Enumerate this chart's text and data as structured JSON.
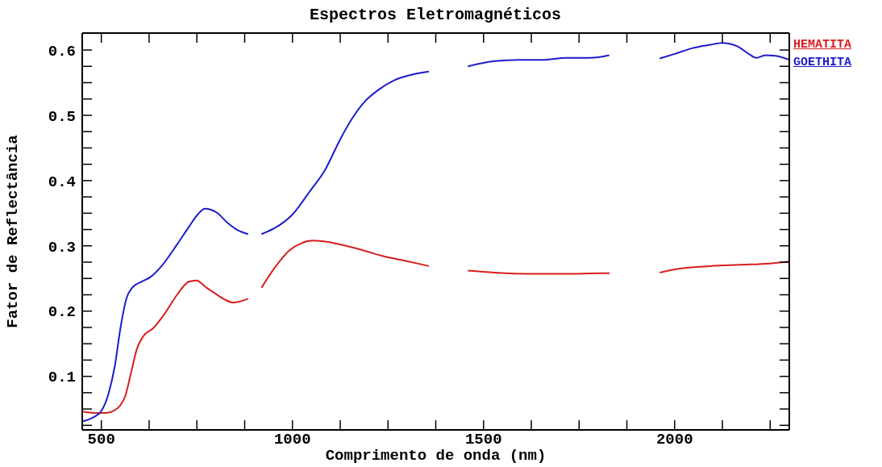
{
  "chart_data": {
    "type": "line",
    "title": "Espectros Eletromagnéticos",
    "xlabel": "Comprimento de onda (nm)",
    "ylabel": "Fator de Reflectância",
    "xlim": [
      450,
      2300
    ],
    "ylim": [
      0.018,
      0.626
    ],
    "xticks": [
      500,
      {
        "value": 625,
        "label": null
      },
      {
        "value": 750,
        "label": null
      },
      {
        "value": 875,
        "label": null
      },
      1000,
      {
        "value": 1125,
        "label": null
      },
      {
        "value": 1250,
        "label": null
      },
      {
        "value": 1375,
        "label": null
      },
      1500,
      {
        "value": 1625,
        "label": null
      },
      {
        "value": 1750,
        "label": null
      },
      {
        "value": 1875,
        "label": null
      },
      2000,
      {
        "value": 2125,
        "label": null
      },
      {
        "value": 2250,
        "label": null
      }
    ],
    "yticks": [
      {
        "value": 0.025,
        "label": null
      },
      {
        "value": 0.05,
        "label": null
      },
      {
        "value": 0.075,
        "label": null
      },
      0.1,
      {
        "value": 0.125,
        "label": null
      },
      {
        "value": 0.15,
        "label": null
      },
      {
        "value": 0.175,
        "label": null
      },
      0.2,
      {
        "value": 0.225,
        "label": null
      },
      {
        "value": 0.25,
        "label": null
      },
      {
        "value": 0.275,
        "label": null
      },
      0.3,
      {
        "value": 0.325,
        "label": null
      },
      {
        "value": 0.35,
        "label": null
      },
      {
        "value": 0.375,
        "label": null
      },
      0.4,
      {
        "value": 0.425,
        "label": null
      },
      {
        "value": 0.45,
        "label": null
      },
      {
        "value": 0.475,
        "label": null
      },
      0.5,
      {
        "value": 0.525,
        "label": null
      },
      {
        "value": 0.55,
        "label": null
      },
      {
        "value": 0.575,
        "label": null
      },
      0.6
    ],
    "grid": false,
    "legend": "top right",
    "marker": "none",
    "line_style": "solid",
    "series": [
      {
        "name": "HEMATITA",
        "color": "#d81e1e",
        "x": [
          450,
          481,
          512,
          535,
          550,
          562,
          578,
          593,
          609,
          636,
          667,
          698,
          729,
          748,
          775,
          798,
          822,
          845,
          864,
          884,
          900,
          919,
          953,
          992,
          1023,
          1054,
          1093,
          1140,
          1186,
          1233,
          1296,
          1357,
          1400,
          1459,
          1529,
          1630,
          1708,
          1811,
          1830,
          1900,
          1961,
          2000,
          2093,
          2171,
          2249,
          2300
        ],
        "values": [
          0.046,
          0.044,
          0.044,
          0.048,
          0.056,
          0.069,
          0.106,
          0.142,
          0.161,
          0.174,
          0.197,
          0.225,
          0.245,
          0.247,
          0.236,
          0.227,
          0.218,
          0.213,
          0.215,
          0.219,
          null,
          0.236,
          0.266,
          0.293,
          0.304,
          0.308,
          0.306,
          0.3,
          0.293,
          0.285,
          0.277,
          0.269,
          null,
          0.262,
          0.259,
          0.257,
          0.257,
          0.258,
          0.258,
          null,
          0.259,
          0.264,
          0.269,
          0.271,
          0.273,
          0.276
        ]
      },
      {
        "name": "GOETHITA",
        "color": "#1c1ccc",
        "x": [
          450,
          481,
          500,
          519,
          535,
          550,
          566,
          581,
          605,
          628,
          659,
          698,
          729,
          752,
          771,
          802,
          829,
          857,
          884,
          900,
          919,
          953,
          1000,
          1046,
          1085,
          1124,
          1155,
          1186,
          1225,
          1264,
          1311,
          1357,
          1400,
          1459,
          1529,
          1591,
          1654,
          1716,
          1778,
          1829,
          1900,
          1961,
          2000,
          2047,
          2093,
          2124,
          2163,
          2194,
          2214,
          2237,
          2264,
          2300
        ],
        "values": [
          0.031,
          0.038,
          0.047,
          0.074,
          0.115,
          0.174,
          0.22,
          0.236,
          0.245,
          0.252,
          0.27,
          0.302,
          0.329,
          0.348,
          0.357,
          0.351,
          0.336,
          0.324,
          0.318,
          null,
          0.318,
          0.327,
          0.348,
          0.384,
          0.416,
          0.462,
          0.494,
          0.519,
          0.539,
          0.553,
          0.562,
          0.567,
          null,
          0.575,
          0.583,
          0.585,
          0.585,
          0.588,
          0.588,
          0.592,
          null,
          0.587,
          0.594,
          0.603,
          0.608,
          0.611,
          0.606,
          0.594,
          0.588,
          0.592,
          0.591,
          0.585
        ]
      }
    ]
  }
}
